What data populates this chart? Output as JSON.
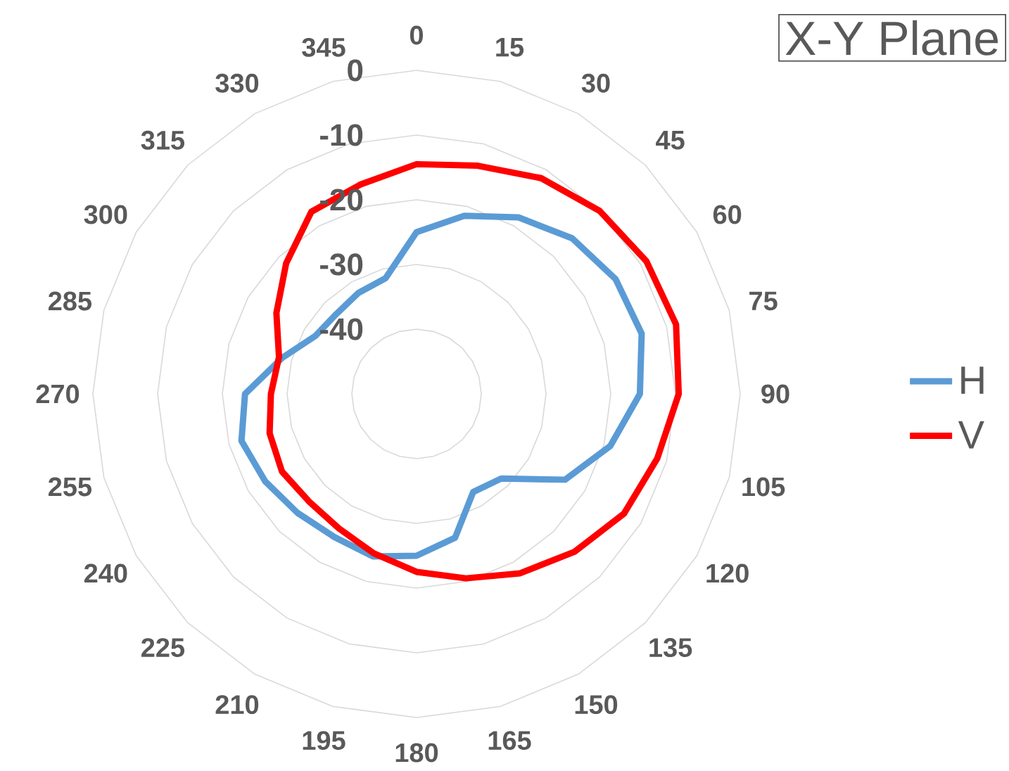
{
  "chart_data": {
    "type": "radar",
    "title": "X-Y Plane",
    "categories": [
      "0",
      "15",
      "30",
      "45",
      "60",
      "75",
      "90",
      "105",
      "120",
      "135",
      "150",
      "165",
      "180",
      "195",
      "210",
      "225",
      "240",
      "255",
      "270",
      "285",
      "300",
      "315",
      "330",
      "345"
    ],
    "series": [
      {
        "name": "H",
        "color": "#5b9bd5",
        "values": [
          -25,
          -21.5,
          -18.5,
          -16,
          -14.5,
          -14,
          -15.5,
          -19,
          -23.5,
          -31.5,
          -32.5,
          -27,
          -25,
          -24,
          -24.5,
          -24,
          -23,
          -22,
          -23.5,
          -28.5,
          -32,
          -32.5,
          -32,
          -31.5
        ]
      },
      {
        "name": "V",
        "color": "#ff0000",
        "values": [
          -14.5,
          -13.5,
          -11.5,
          -10,
          -9,
          -8.5,
          -9.5,
          -11.5,
          -13,
          -15.5,
          -18,
          -20.5,
          -22.5,
          -24.5,
          -26,
          -26.5,
          -26,
          -26.5,
          -27.5,
          -28,
          -25,
          -21.5,
          -17.5,
          -16.5
        ]
      }
    ],
    "ylim": [
      -50,
      0
    ],
    "yticks": [
      -40,
      -30,
      -20,
      -10,
      0
    ],
    "grid": true,
    "legend": "right"
  }
}
